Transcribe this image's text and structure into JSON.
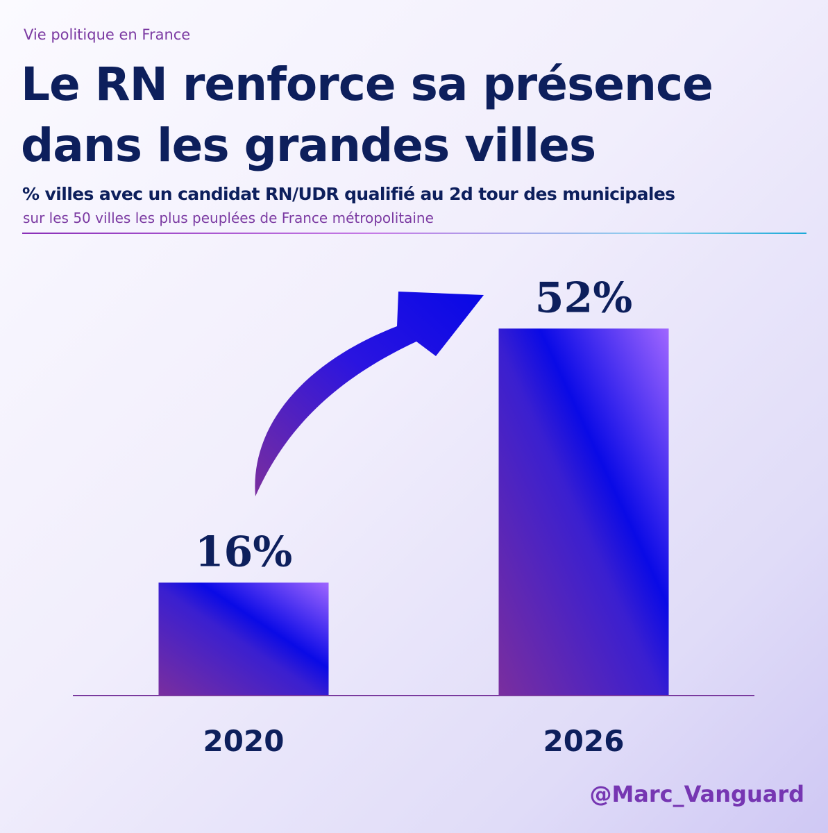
{
  "header": {
    "kicker": "Vie politique en France",
    "title": "Le RN renforce sa présence dans les grandes villes",
    "subtitle": "% villes avec un candidat RN/UDR qualifié au 2d tour des municipales",
    "note": "sur les 50 villes les plus peuplées de France métropolitaine"
  },
  "footer": {
    "handle": "@Marc_Vanguard"
  },
  "chart_data": {
    "type": "bar",
    "categories": [
      "2020",
      "2026"
    ],
    "values": [
      16,
      52
    ],
    "value_labels": [
      "16%",
      "52%"
    ],
    "unit": "%",
    "ylim": [
      0,
      60
    ],
    "grid": false,
    "legend": "none",
    "annotation": "arrow-up-right-icon",
    "colors": {
      "bar_dark": "#7a2e9e",
      "bar_mid": "#0a0ae6",
      "bar_light": "#a066ff",
      "text": "#0d1f5c",
      "axis": "#7a3a9e"
    }
  }
}
